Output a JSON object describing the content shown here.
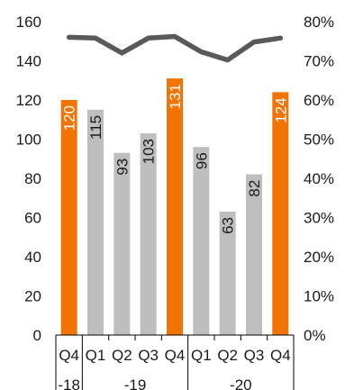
{
  "chart_data": {
    "type": "bar",
    "categories": [
      "Q4",
      "Q1",
      "Q2",
      "Q3",
      "Q4",
      "Q1",
      "Q2",
      "Q3",
      "Q4"
    ],
    "groups": [
      {
        "label": "-18",
        "size": 1
      },
      {
        "label": "-19",
        "size": 4
      },
      {
        "label": "-20",
        "size": 4
      }
    ],
    "series": [
      {
        "type": "bar",
        "axis": "left",
        "values": [
          120,
          115,
          93,
          103,
          131,
          96,
          63,
          82,
          124
        ],
        "labels": [
          "120",
          "115",
          "93",
          "103",
          "131",
          "96",
          "63",
          "82",
          "124"
        ],
        "highlight": [
          true,
          false,
          false,
          false,
          true,
          false,
          false,
          false,
          true
        ]
      },
      {
        "type": "line",
        "axis": "right",
        "values": [
          76,
          75.8,
          72,
          75.8,
          76.2,
          72.3,
          70.2,
          74.8,
          75.8
        ]
      }
    ],
    "y_left": {
      "min": 0,
      "max": 160,
      "ticks": [
        "0",
        "20",
        "40",
        "60",
        "80",
        "100",
        "120",
        "140",
        "160"
      ]
    },
    "y_right": {
      "min": 0,
      "max": 80,
      "ticks": [
        "0%",
        "10%",
        "20%",
        "30%",
        "40%",
        "50%",
        "60%",
        "70%",
        "80%"
      ]
    },
    "colors": {
      "highlight": "#F27405",
      "regular": "#BEBEBE",
      "line": "#595959",
      "axis": "#000000"
    },
    "grid": false,
    "legend": "none"
  }
}
